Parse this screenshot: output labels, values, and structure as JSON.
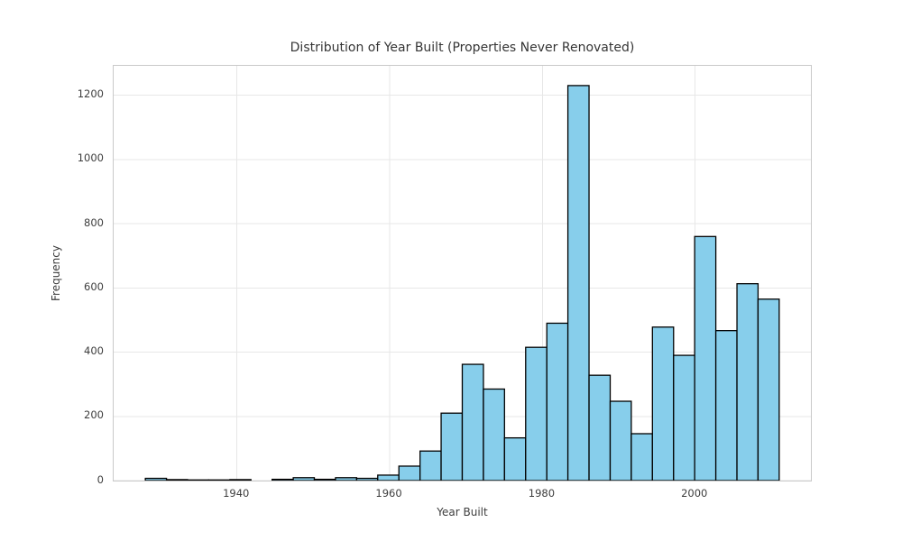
{
  "chart_data": {
    "type": "bar",
    "subtype": "histogram",
    "title": "Distribution of Year Built (Properties Never Renovated)",
    "xlabel": "Year Built",
    "ylabel": "Frequency",
    "bin_edges": [
      1928.0,
      1930.77,
      1933.53,
      1936.3,
      1939.07,
      1941.83,
      1944.6,
      1947.37,
      1950.13,
      1952.9,
      1955.67,
      1958.43,
      1961.2,
      1963.97,
      1966.73,
      1969.5,
      1972.27,
      1975.03,
      1977.8,
      1980.57,
      1983.33,
      1986.1,
      1988.87,
      1991.63,
      1994.4,
      1997.17,
      1999.93,
      2002.7,
      2005.47,
      2008.23,
      2011.0
    ],
    "values": [
      7,
      3,
      2,
      2,
      3,
      0,
      4,
      9,
      4,
      9,
      7,
      17,
      45,
      92,
      210,
      362,
      285,
      133,
      415,
      490,
      1230,
      328,
      247,
      146,
      478,
      390,
      760,
      467,
      613,
      565
    ],
    "xlim": [
      1923.85,
      2015.15
    ],
    "ylim": [
      0,
      1291.5
    ],
    "xticks": [
      1940,
      1960,
      1980,
      2000
    ],
    "yticks": [
      0,
      200,
      400,
      600,
      800,
      1000,
      1200
    ],
    "grid": true,
    "legend_position": "none",
    "colors": {
      "bar_fill": "#87CEEB",
      "bar_edge": "#000000",
      "grid": "#E7E7E7",
      "spine": "#C9C9C9",
      "text": "#3D3D3D"
    }
  }
}
